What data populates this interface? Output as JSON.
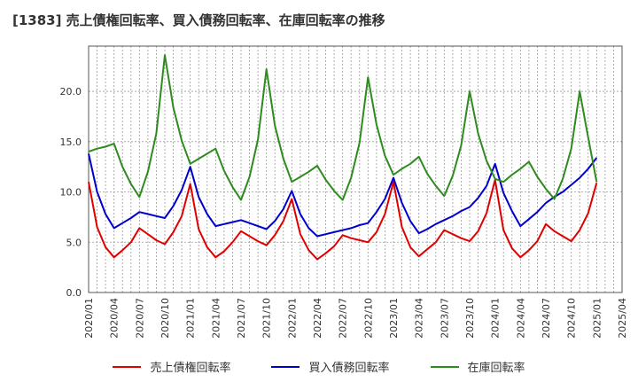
{
  "chart_data": {
    "type": "line",
    "title": "[1383]  売上債権回転率、買入債務回転率、在庫回転率の推移",
    "xlabel": "",
    "ylabel": "",
    "x_tick_labels": [
      "2020/01",
      "2020/04",
      "2020/07",
      "2020/10",
      "2021/01",
      "2021/04",
      "2021/07",
      "2021/10",
      "2022/01",
      "2022/04",
      "2022/07",
      "2022/10",
      "2023/01",
      "2023/04",
      "2023/07",
      "2023/10",
      "2024/01",
      "2024/04",
      "2024/07",
      "2024/10",
      "2025/01",
      "2025/04"
    ],
    "y_tick_labels": [
      "0.0",
      "5.0",
      "10.0",
      "15.0",
      "20.0"
    ],
    "ylim": [
      0,
      24.5
    ],
    "x_range_months": [
      0,
      63
    ],
    "grid": true,
    "legend_position": "bottom",
    "series": [
      {
        "name": "売上債権回転率",
        "color": "#e00000",
        "x": [
          0,
          1,
          2,
          3,
          4,
          5,
          6,
          7,
          8,
          9,
          10,
          11,
          12,
          13,
          14,
          15,
          16,
          17,
          18,
          19,
          20,
          21,
          22,
          23,
          24,
          25,
          26,
          27,
          28,
          29,
          30,
          31,
          32,
          33,
          34,
          35,
          36,
          37,
          38,
          39,
          40,
          41,
          42,
          43,
          44,
          45,
          46,
          47,
          48,
          49,
          50,
          51,
          52,
          53,
          54,
          55,
          56,
          57,
          58,
          59,
          60
        ],
        "values": [
          11.0,
          6.5,
          4.5,
          3.5,
          4.2,
          5.0,
          6.4,
          5.8,
          5.2,
          4.8,
          6.0,
          7.6,
          10.8,
          6.3,
          4.5,
          3.5,
          4.1,
          5.0,
          6.1,
          5.6,
          5.1,
          4.7,
          5.7,
          7.1,
          9.3,
          5.8,
          4.2,
          3.3,
          3.9,
          4.6,
          5.7,
          5.4,
          5.2,
          5.0,
          6.0,
          7.8,
          11.0,
          6.5,
          4.5,
          3.6,
          4.3,
          5.0,
          6.2,
          5.8,
          5.4,
          5.1,
          6.1,
          7.9,
          11.2,
          6.2,
          4.4,
          3.5,
          4.2,
          5.1,
          6.8,
          6.1,
          5.6,
          5.1,
          6.2,
          7.9,
          10.9
        ]
      },
      {
        "name": "買入債務回転率",
        "color": "#0000cc",
        "x": [
          0,
          1,
          2,
          3,
          4,
          5,
          6,
          7,
          8,
          9,
          10,
          11,
          12,
          13,
          14,
          15,
          16,
          17,
          18,
          19,
          20,
          21,
          22,
          23,
          24,
          25,
          26,
          27,
          28,
          29,
          30,
          31,
          32,
          33,
          34,
          35,
          36,
          37,
          38,
          39,
          40,
          41,
          42,
          43,
          44,
          45,
          46,
          47,
          48,
          49,
          50,
          51,
          52,
          53,
          54,
          55,
          56,
          57,
          58,
          59,
          60
        ],
        "values": [
          13.8,
          10.0,
          7.8,
          6.4,
          6.9,
          7.4,
          8.0,
          7.8,
          7.6,
          7.4,
          8.6,
          10.2,
          12.5,
          9.5,
          7.8,
          6.6,
          6.8,
          7.0,
          7.2,
          6.9,
          6.6,
          6.3,
          7.1,
          8.3,
          10.1,
          7.8,
          6.4,
          5.6,
          5.8,
          6.0,
          6.2,
          6.4,
          6.7,
          6.9,
          8.0,
          9.3,
          11.4,
          8.9,
          7.1,
          5.9,
          6.3,
          6.8,
          7.2,
          7.6,
          8.1,
          8.5,
          9.4,
          10.6,
          12.8,
          9.9,
          8.1,
          6.6,
          7.3,
          8.0,
          8.9,
          9.5,
          10.0,
          10.7,
          11.4,
          12.3,
          13.4
        ]
      },
      {
        "name": "在庫回転率",
        "color": "#2e8b1e",
        "x": [
          0,
          1,
          2,
          3,
          4,
          5,
          6,
          7,
          8,
          9,
          10,
          11,
          12,
          13,
          14,
          15,
          16,
          17,
          18,
          19,
          20,
          21,
          22,
          23,
          24,
          25,
          26,
          27,
          28,
          29,
          30,
          31,
          32,
          33,
          34,
          35,
          36,
          37,
          38,
          39,
          40,
          41,
          42,
          43,
          44,
          45,
          46,
          47,
          48,
          49,
          50,
          51,
          52,
          53,
          54,
          55,
          56,
          57,
          58,
          59,
          60
        ],
        "values": [
          14.0,
          14.3,
          14.5,
          14.8,
          12.5,
          10.8,
          9.5,
          12.0,
          15.8,
          23.6,
          18.4,
          15.1,
          12.8,
          13.3,
          13.8,
          14.3,
          12.1,
          10.5,
          9.2,
          11.5,
          15.2,
          22.2,
          16.6,
          13.3,
          11.0,
          11.5,
          12.0,
          12.6,
          11.2,
          10.1,
          9.2,
          11.4,
          14.9,
          21.4,
          16.7,
          13.6,
          11.7,
          12.3,
          12.8,
          13.5,
          11.8,
          10.6,
          9.6,
          11.6,
          14.6,
          20.0,
          15.8,
          13.1,
          11.3,
          11.0,
          11.7,
          12.3,
          13.0,
          11.5,
          10.3,
          9.3,
          11.3,
          14.3,
          20.0,
          15.4,
          11.0
        ]
      }
    ]
  }
}
